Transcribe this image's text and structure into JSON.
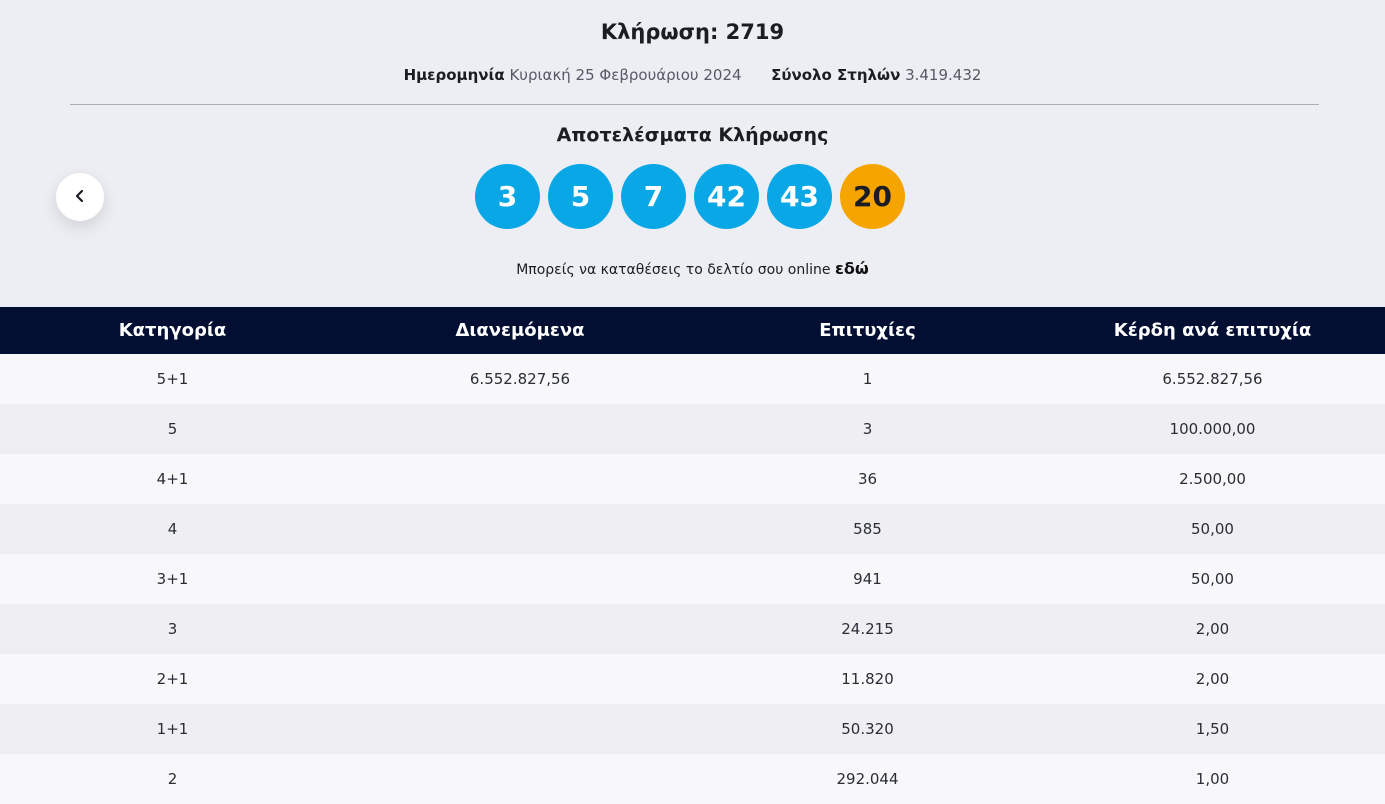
{
  "draw": {
    "title": "Κλήρωση: 2719",
    "date_label": "Ημερομηνία",
    "date_value": "Κυριακή 25 Φεβρουάριου 2024",
    "columns_label": "Σύνολο Στηλών",
    "columns_value": "3.419.432"
  },
  "results": {
    "title": "Αποτελέσματα Κλήρωσης",
    "numbers": [
      "3",
      "5",
      "7",
      "42",
      "43"
    ],
    "joker": "20"
  },
  "online": {
    "text": "Μπορείς να καταθέσεις το δελτίο σου online",
    "link": "εδώ"
  },
  "table": {
    "headers": [
      "Κατηγορία",
      "Διανεμόμενα",
      "Επιτυχίες",
      "Κέρδη ανά επιτυχία"
    ],
    "rows": [
      [
        "5+1",
        "6.552.827,56",
        "1",
        "6.552.827,56"
      ],
      [
        "5",
        "",
        "3",
        "100.000,00"
      ],
      [
        "4+1",
        "",
        "36",
        "2.500,00"
      ],
      [
        "4",
        "",
        "585",
        "50,00"
      ],
      [
        "3+1",
        "",
        "941",
        "50,00"
      ],
      [
        "3",
        "",
        "24.215",
        "2,00"
      ],
      [
        "2+1",
        "",
        "11.820",
        "2,00"
      ],
      [
        "1+1",
        "",
        "50.320",
        "1,50"
      ],
      [
        "2",
        "",
        "292.044",
        "1,00"
      ]
    ]
  },
  "colors": {
    "ball": "#0aa7e6",
    "joker_ball": "#f6a500",
    "table_header": "#020f33"
  },
  "icons": {
    "prev": "chevron-left-icon"
  }
}
